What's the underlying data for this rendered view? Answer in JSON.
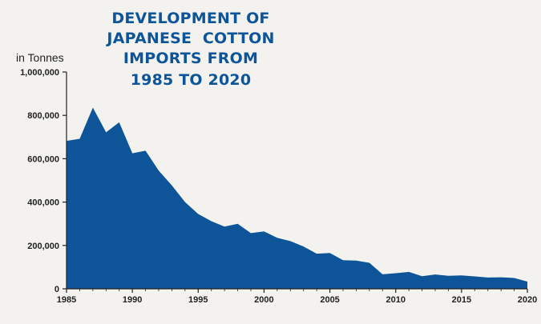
{
  "colors": {
    "background": "#f3f2ee",
    "series": "#0d5598",
    "title": "#0d5598",
    "text": "#222222",
    "axis": "#222222"
  },
  "chart_data": {
    "type": "area",
    "title_lines": [
      "DEVELOPMENT OF",
      "JAPANESE  COTTON",
      "IMPORTS FROM",
      "1985 TO 2020"
    ],
    "ylabel": "in Tonnes",
    "xlabel": "",
    "xlim": [
      1985,
      2020
    ],
    "ylim": [
      0,
      1000000
    ],
    "x_ticks": [
      1985,
      1990,
      1995,
      2000,
      2005,
      2010,
      2015,
      2020
    ],
    "x_tick_labels": [
      "1985",
      "1990",
      "1995",
      "2000",
      "2005",
      "2010",
      "2015",
      "2020"
    ],
    "y_ticks": [
      0,
      200000,
      400000,
      600000,
      800000,
      1000000
    ],
    "y_tick_labels": [
      "0",
      "200,000",
      "400,000",
      "600,000",
      "800,000",
      "1,000,000"
    ],
    "grid": false,
    "legend": "none",
    "x": [
      1985,
      1986,
      1987,
      1988,
      1989,
      1990,
      1991,
      1992,
      1993,
      1994,
      1995,
      1996,
      1997,
      1998,
      1999,
      2000,
      2001,
      2002,
      2003,
      2004,
      2005,
      2006,
      2007,
      2008,
      2009,
      2010,
      2011,
      2012,
      2013,
      2014,
      2015,
      2016,
      2017,
      2018,
      2019,
      2020
    ],
    "values": [
      682000,
      692000,
      836000,
      722000,
      768000,
      625000,
      637000,
      545000,
      477000,
      400000,
      345000,
      312000,
      287000,
      300000,
      257000,
      265000,
      235000,
      220000,
      195000,
      162000,
      165000,
      132000,
      130000,
      120000,
      67000,
      72000,
      78000,
      58000,
      66000,
      60000,
      62000,
      57000,
      52000,
      53000,
      50000,
      33000
    ]
  }
}
